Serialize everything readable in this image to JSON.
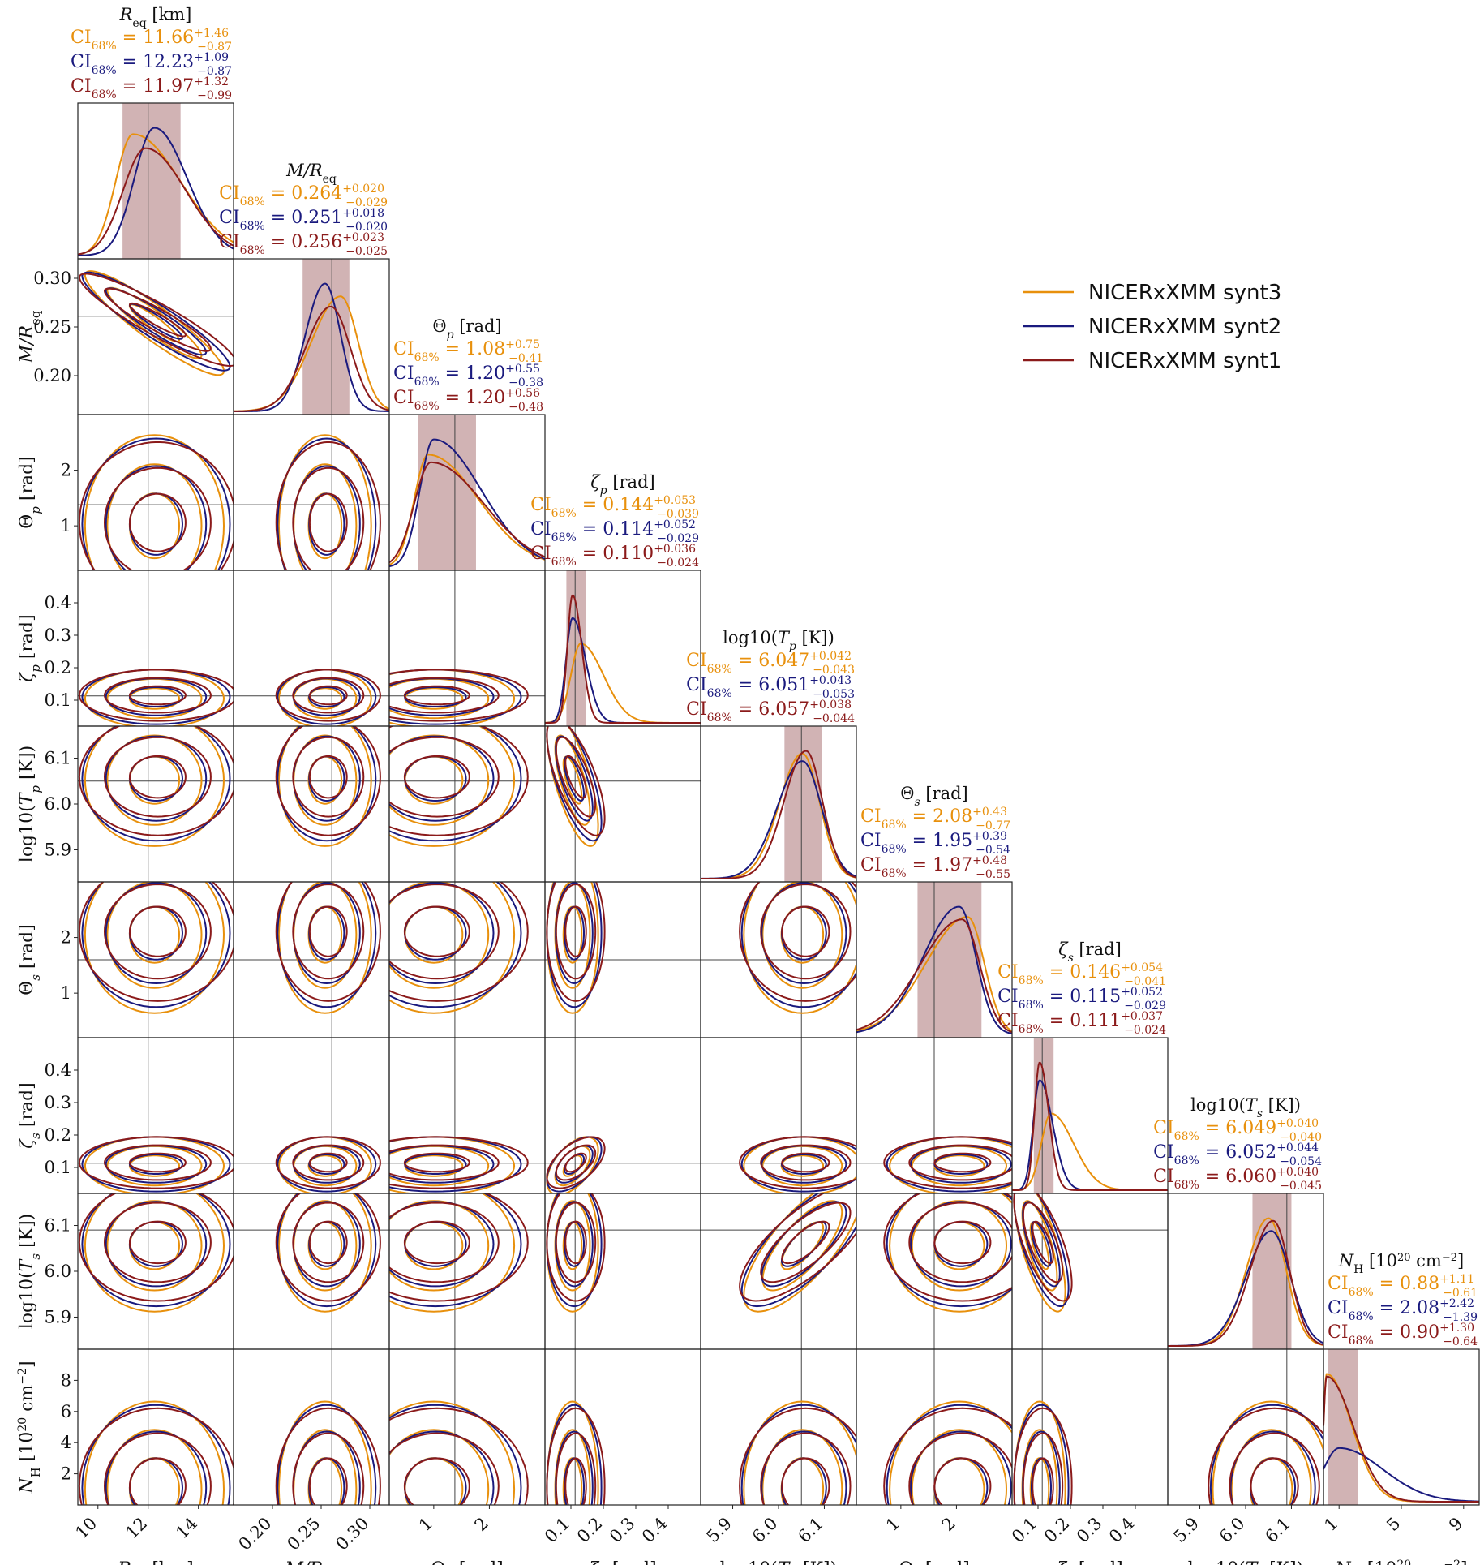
{
  "chart_data": {
    "type": "corner",
    "grid": false,
    "legend_placement": "top-right",
    "colors": {
      "synt3": "#e8900c",
      "synt2": "#1a1a7e",
      "synt1": "#8b1a1a",
      "band": "#b98a8c",
      "truth": "#444444"
    },
    "legend": [
      {
        "key": "synt3",
        "label": "NICERxXMM synt3"
      },
      {
        "key": "synt2",
        "label": "NICERxXMM synt2"
      },
      {
        "key": "synt1",
        "label": "NICERxXMM synt1"
      }
    ],
    "parameters": [
      {
        "key": "Req",
        "title": "R_eq [km]",
        "xlabel": "R_eq [km]",
        "ylabel": "",
        "range": [
          9.2,
          15.4
        ],
        "truth": 12.0,
        "ticks": [
          {
            "v": 10,
            "t": "10"
          },
          {
            "v": 12,
            "t": "12"
          },
          {
            "v": 14,
            "t": "14"
          }
        ],
        "ci": [
          {
            "series": "synt3",
            "label": "CI68% = 11.66 +1.46 −0.87"
          },
          {
            "series": "synt2",
            "label": "CI68% = 12.23 +1.09 −0.87"
          },
          {
            "series": "synt1",
            "label": "CI68% = 11.97 +1.32 −0.99"
          }
        ],
        "band": [
          10.98,
          13.29
        ],
        "peaks": [
          {
            "series": "synt3",
            "mode": 11.4,
            "w": [
              0.7,
              1.9
            ],
            "h": 0.95
          },
          {
            "series": "synt2",
            "mode": 12.25,
            "w": [
              0.8,
              1.3
            ],
            "h": 1.0
          },
          {
            "series": "synt1",
            "mode": 11.9,
            "w": [
              0.9,
              1.6
            ],
            "h": 0.84
          }
        ]
      },
      {
        "key": "MR",
        "title": "M/R_eq",
        "xlabel": "M/R_eq",
        "ylabel": "M/R_eq",
        "range": [
          0.16,
          0.32
        ],
        "truth": 0.261,
        "ticks": [
          {
            "v": 0.2,
            "t": "0.20"
          },
          {
            "v": 0.25,
            "t": "0.25"
          },
          {
            "v": 0.3,
            "t": "0.30"
          }
        ],
        "ci": [
          {
            "series": "synt3",
            "label": "CI68% = 0.264 +0.020 −0.029"
          },
          {
            "series": "synt2",
            "label": "CI68% = 0.251 +0.018 −0.020"
          },
          {
            "series": "synt1",
            "label": "CI68% = 0.256 +0.023 −0.025"
          }
        ],
        "band": [
          0.231,
          0.279
        ],
        "peaks": [
          {
            "series": "synt3",
            "mode": 0.27,
            "w": [
              0.03,
              0.018
            ],
            "h": 0.9
          },
          {
            "series": "synt2",
            "mode": 0.254,
            "w": [
              0.02,
              0.016
            ],
            "h": 1.0
          },
          {
            "series": "synt1",
            "mode": 0.26,
            "w": [
              0.026,
              0.02
            ],
            "h": 0.82
          }
        ]
      },
      {
        "key": "thp",
        "title": "Θp [rad]",
        "xlabel": "Θp [rad]",
        "ylabel": "Θp [rad]",
        "range": [
          0.2,
          3.0
        ],
        "truth": 1.38,
        "ticks": [
          {
            "v": 1,
            "t": "1"
          },
          {
            "v": 2,
            "t": "2"
          }
        ],
        "ci": [
          {
            "series": "synt3",
            "label": "CI68% = 1.08 +0.75 −0.41"
          },
          {
            "series": "synt2",
            "label": "CI68% = 1.20 +0.55 −0.38"
          },
          {
            "series": "synt1",
            "label": "CI68% = 1.20 +0.56 −0.48"
          }
        ],
        "band": [
          0.72,
          1.76
        ],
        "peaks": [
          {
            "series": "synt3",
            "mode": 0.9,
            "w": [
              0.25,
              0.9
            ],
            "h": 0.88
          },
          {
            "series": "synt2",
            "mode": 1.0,
            "w": [
              0.25,
              0.85
            ],
            "h": 1.0
          },
          {
            "series": "synt1",
            "mode": 0.95,
            "w": [
              0.3,
              0.95
            ],
            "h": 0.82
          }
        ]
      },
      {
        "key": "zp",
        "title": "ζp [rad]",
        "xlabel": "ζp [rad]",
        "ylabel": "ζp [rad]",
        "range": [
          0.02,
          0.5
        ],
        "truth": 0.113,
        "ticks": [
          {
            "v": 0.1,
            "t": "0.1"
          },
          {
            "v": 0.2,
            "t": "0.2"
          },
          {
            "v": 0.3,
            "t": "0.3"
          },
          {
            "v": 0.4,
            "t": "0.4"
          }
        ],
        "ci": [
          {
            "series": "synt3",
            "label": "CI68% = 0.144 +0.053 −0.039"
          },
          {
            "series": "synt2",
            "label": "CI68% = 0.114 +0.052 −0.029"
          },
          {
            "series": "synt1",
            "label": "CI68% = 0.110 +0.036 −0.024"
          }
        ],
        "band": [
          0.086,
          0.146
        ],
        "peaks": [
          {
            "series": "synt3",
            "mode": 0.13,
            "w": [
              0.03,
              0.07
            ],
            "h": 0.62
          },
          {
            "series": "synt2",
            "mode": 0.105,
            "w": [
              0.02,
              0.04
            ],
            "h": 0.82
          },
          {
            "series": "synt1",
            "mode": 0.105,
            "w": [
              0.016,
              0.028
            ],
            "h": 1.0
          }
        ]
      },
      {
        "key": "Tp",
        "title": "log10(Tp [K])",
        "xlabel": "log10(Tp [K])",
        "ylabel": "log10(Tp [K])",
        "range": [
          5.83,
          6.17
        ],
        "truth": 6.05,
        "ticks": [
          {
            "v": 5.9,
            "t": "5.9"
          },
          {
            "v": 6.0,
            "t": "6.0"
          },
          {
            "v": 6.1,
            "t": "6.1"
          }
        ],
        "ci": [
          {
            "series": "synt3",
            "label": "CI68% = 6.047 +0.042 −0.043"
          },
          {
            "series": "synt2",
            "label": "CI68% = 6.051 +0.043 −0.053"
          },
          {
            "series": "synt1",
            "label": "CI68% = 6.057 +0.038 −0.044"
          }
        ],
        "band": [
          6.013,
          6.095
        ],
        "peaks": [
          {
            "series": "synt3",
            "mode": 6.052,
            "w": [
              0.05,
              0.038
            ],
            "h": 0.98
          },
          {
            "series": "synt2",
            "mode": 6.052,
            "w": [
              0.055,
              0.042
            ],
            "h": 0.92
          },
          {
            "series": "synt1",
            "mode": 6.06,
            "w": [
              0.048,
              0.036
            ],
            "h": 1.0
          }
        ]
      },
      {
        "key": "ths",
        "title": "Θs [rad]",
        "xlabel": "Θs [rad]",
        "ylabel": "Θs [rad]",
        "range": [
          0.2,
          3.0
        ],
        "truth": 1.6,
        "ticks": [
          {
            "v": 1,
            "t": "1"
          },
          {
            "v": 2,
            "t": "2"
          }
        ],
        "ci": [
          {
            "series": "synt3",
            "label": "CI68% = 2.08 +0.43 −0.77"
          },
          {
            "series": "synt2",
            "label": "CI68% = 1.95 +0.39 −0.54"
          },
          {
            "series": "synt1",
            "label": "CI68% = 1.97 +0.48 −0.55"
          }
        ],
        "band": [
          1.3,
          2.45
        ],
        "peaks": [
          {
            "series": "synt3",
            "mode": 2.2,
            "w": [
              0.75,
              0.3
            ],
            "h": 0.92
          },
          {
            "series": "synt2",
            "mode": 2.05,
            "w": [
              0.65,
              0.3
            ],
            "h": 1.0
          },
          {
            "series": "synt1",
            "mode": 2.1,
            "w": [
              0.75,
              0.32
            ],
            "h": 0.9
          }
        ]
      },
      {
        "key": "zs",
        "title": "ζs [rad]",
        "xlabel": "ζs [rad]",
        "ylabel": "ζs [rad]",
        "range": [
          0.02,
          0.5
        ],
        "truth": 0.113,
        "ticks": [
          {
            "v": 0.1,
            "t": "0.1"
          },
          {
            "v": 0.2,
            "t": "0.2"
          },
          {
            "v": 0.3,
            "t": "0.3"
          },
          {
            "v": 0.4,
            "t": "0.4"
          }
        ],
        "ci": [
          {
            "series": "synt3",
            "label": "CI68% = 0.146 +0.054 −0.041"
          },
          {
            "series": "synt2",
            "label": "CI68% = 0.115 +0.052 −0.029"
          },
          {
            "series": "synt1",
            "label": "CI68% = 0.111 +0.037 −0.024"
          }
        ],
        "band": [
          0.087,
          0.148
        ],
        "peaks": [
          {
            "series": "synt3",
            "mode": 0.14,
            "w": [
              0.03,
              0.07
            ],
            "h": 0.6
          },
          {
            "series": "synt2",
            "mode": 0.105,
            "w": [
              0.02,
              0.04
            ],
            "h": 0.86
          },
          {
            "series": "synt1",
            "mode": 0.105,
            "w": [
              0.016,
              0.028
            ],
            "h": 1.0
          }
        ]
      },
      {
        "key": "Ts",
        "title": "log10(Ts [K])",
        "xlabel": "log10(Ts [K])",
        "ylabel": "log10(Ts [K])",
        "range": [
          5.83,
          6.17
        ],
        "truth": 6.09,
        "ticks": [
          {
            "v": 5.9,
            "t": "5.9"
          },
          {
            "v": 6.0,
            "t": "6.0"
          },
          {
            "v": 6.1,
            "t": "6.1"
          }
        ],
        "ci": [
          {
            "series": "synt3",
            "label": "CI68% = 6.049 +0.040 −0.040"
          },
          {
            "series": "synt2",
            "label": "CI68% = 6.052 +0.044 −0.054"
          },
          {
            "series": "synt1",
            "label": "CI68% = 6.060 +0.040 −0.045"
          }
        ],
        "band": [
          6.015,
          6.1
        ],
        "peaks": [
          {
            "series": "synt3",
            "mode": 6.05,
            "w": [
              0.048,
              0.038
            ],
            "h": 1.0
          },
          {
            "series": "synt2",
            "mode": 6.056,
            "w": [
              0.055,
              0.042
            ],
            "h": 0.9
          },
          {
            "series": "synt1",
            "mode": 6.06,
            "w": [
              0.05,
              0.036
            ],
            "h": 0.98
          }
        ]
      },
      {
        "key": "NH",
        "title": "N_H [10^20 cm^-2]",
        "xlabel": "N_H [10^20 cm^-2]",
        "ylabel": "N_H [10^20 cm^-2]",
        "range": [
          0.0,
          10.0
        ],
        "truth": null,
        "ticks": [
          {
            "v": 1,
            "t": "1"
          },
          {
            "v": 5,
            "t": "5"
          },
          {
            "v": 9,
            "t": "9"
          }
        ],
        "yticks": [
          {
            "v": 2,
            "t": "2"
          },
          {
            "v": 4,
            "t": "4"
          },
          {
            "v": 6,
            "t": "6"
          },
          {
            "v": 8,
            "t": "8"
          }
        ],
        "ci": [
          {
            "series": "synt3",
            "label": "CI68% = 0.88 +1.11 −0.61"
          },
          {
            "series": "synt2",
            "label": "CI68% = 2.08 +2.42 −1.39"
          },
          {
            "series": "synt1",
            "label": "CI68% = 0.90 +1.30 −0.64"
          }
        ],
        "band": [
          0.27,
          2.2
        ],
        "peaks": [
          {
            "series": "synt3",
            "mode": 0.2,
            "w": [
              0.2,
              1.6
            ],
            "h": 1.0
          },
          {
            "series": "synt2",
            "mode": 1.0,
            "w": [
              1.0,
              2.8
            ],
            "h": 0.42
          },
          {
            "series": "synt1",
            "mode": 0.2,
            "w": [
              0.2,
              1.7
            ],
            "h": 0.98
          }
        ]
      }
    ],
    "yticks_override": {
      "MR": [
        {
          "v": 0.2,
          "t": "0.20"
        },
        {
          "v": 0.25,
          "t": "0.25"
        },
        {
          "v": 0.3,
          "t": "0.30"
        }
      ],
      "thp": [
        {
          "v": 1,
          "t": "1"
        },
        {
          "v": 2,
          "t": "2"
        }
      ],
      "zp": [
        {
          "v": 0.1,
          "t": "0.1"
        },
        {
          "v": 0.2,
          "t": "0.2"
        },
        {
          "v": 0.3,
          "t": "0.3"
        },
        {
          "v": 0.4,
          "t": "0.4"
        }
      ],
      "Tp": [
        {
          "v": 5.9,
          "t": "5.9"
        },
        {
          "v": 6.0,
          "t": "6.0"
        },
        {
          "v": 6.1,
          "t": "6.1"
        }
      ],
      "ths": [
        {
          "v": 1,
          "t": "1"
        },
        {
          "v": 2,
          "t": "2"
        }
      ],
      "zs": [
        {
          "v": 0.1,
          "t": "0.1"
        },
        {
          "v": 0.2,
          "t": "0.2"
        },
        {
          "v": 0.3,
          "t": "0.3"
        },
        {
          "v": 0.4,
          "t": "0.4"
        }
      ],
      "Ts": [
        {
          "v": 5.9,
          "t": "5.9"
        },
        {
          "v": 6.0,
          "t": "6.0"
        },
        {
          "v": 6.1,
          "t": "6.1"
        }
      ],
      "NH": [
        {
          "v": 2,
          "t": "2"
        },
        {
          "v": 4,
          "t": "4"
        },
        {
          "v": 6,
          "t": "6"
        },
        {
          "v": 8,
          "t": "8"
        }
      ]
    },
    "correlations": {
      "0-1": -0.92,
      "3-4": -0.7,
      "6-7": -0.7,
      "4-7": 0.75,
      "3-6": 0.55,
      "0-2": 0.0
    }
  }
}
